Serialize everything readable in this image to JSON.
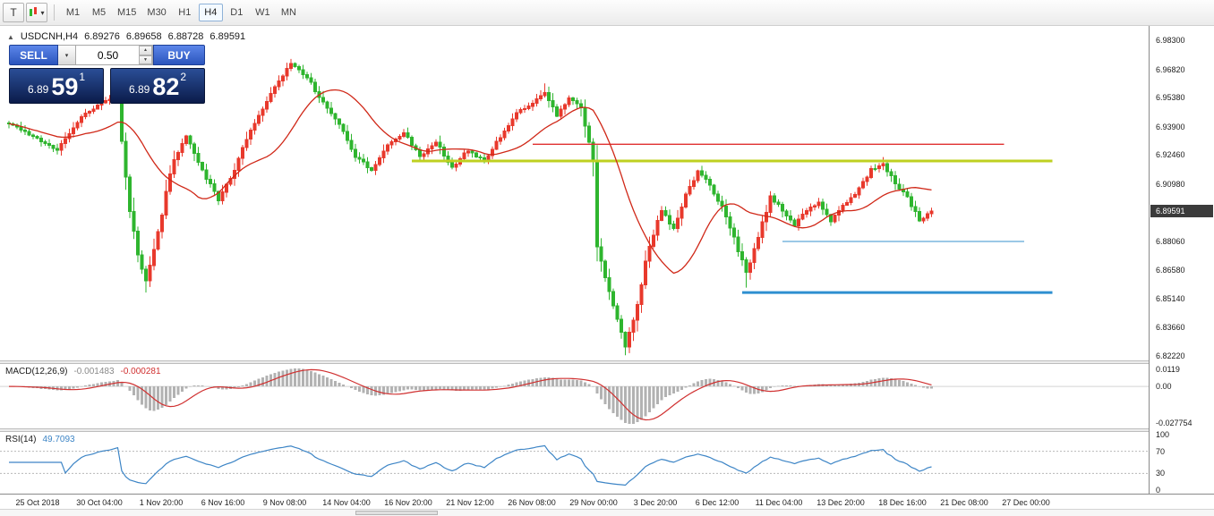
{
  "icons": {
    "dropdown_caret": "▾",
    "collapse_arrow": "▲",
    "spin_up": "▲",
    "spin_down": "▼"
  },
  "toolbar": {
    "icon_t": "T",
    "timeframes": [
      {
        "label": "M1",
        "active": false
      },
      {
        "label": "M5",
        "active": false
      },
      {
        "label": "M15",
        "active": false
      },
      {
        "label": "M30",
        "active": false
      },
      {
        "label": "H1",
        "active": false
      },
      {
        "label": "H4",
        "active": true
      },
      {
        "label": "D1",
        "active": false
      },
      {
        "label": "W1",
        "active": false
      },
      {
        "label": "MN",
        "active": false
      }
    ]
  },
  "chart_header": {
    "symbol": "USDCNH,H4",
    "open": "6.89276",
    "high": "6.89658",
    "low": "6.88728",
    "close": "6.89591"
  },
  "one_click": {
    "sell_label": "SELL",
    "buy_label": "BUY",
    "volume": "0.50",
    "bid_small": "6.89",
    "bid_big": "59",
    "bid_sup": "1",
    "ask_small": "6.89",
    "ask_big": "82",
    "ask_sup": "2"
  },
  "price_scale": [
    "6.98300",
    "6.96820",
    "6.95380",
    "6.93900",
    "6.92460",
    "6.90980",
    "6.89540",
    "6.88060",
    "6.86580",
    "6.85140",
    "6.83660",
    "6.82220"
  ],
  "current_price": "6.89591",
  "macd_panel": {
    "label": "MACD(12,26,9)",
    "value_main": "-0.001483",
    "value_signal": "-0.000281",
    "scale_top": "0.0119",
    "scale_zero": "0.00",
    "scale_bottom": "-0.027754"
  },
  "rsi_panel": {
    "label": "RSI(14)",
    "value": "49.7093",
    "scale": [
      "100",
      "70",
      "30",
      "0"
    ]
  },
  "time_axis": [
    "25 Oct 2018",
    "30 Oct 04:00",
    "1 Nov 20:00",
    "6 Nov 16:00",
    "9 Nov 08:00",
    "14 Nov 04:00",
    "16 Nov 20:00",
    "21 Nov 12:00",
    "26 Nov 08:00",
    "29 Nov 00:00",
    "3 Dec 20:00",
    "6 Dec 12:00",
    "11 Dec 04:00",
    "13 Dec 20:00",
    "18 Dec 16:00",
    "21 Dec 08:00",
    "27 Dec 00:00"
  ],
  "colors": {
    "up": "#e8392c",
    "down": "#2eb52e",
    "ma": "#d02818",
    "macd_hist": "#b2b2b2",
    "macd_signal": "#d03030",
    "rsi": "#3d85c6",
    "hline_red": "#e03030",
    "hline_yellow": "#bfd021",
    "hline_blue_thin": "#5fa8d8",
    "hline_blue_thick": "#2e8fd0"
  },
  "chart_data": {
    "type": "candlestick",
    "symbol": "USDCNH",
    "timeframe": "H4",
    "bars": 230,
    "ylim": [
      6.8199,
      6.9903
    ],
    "close_waypoints": [
      [
        0,
        6.941
      ],
      [
        6,
        6.934
      ],
      [
        12,
        6.927
      ],
      [
        18,
        6.944
      ],
      [
        24,
        6.952
      ],
      [
        27,
        6.956
      ],
      [
        28,
        6.93
      ],
      [
        30,
        6.898
      ],
      [
        32,
        6.874
      ],
      [
        34,
        6.861
      ],
      [
        37,
        6.886
      ],
      [
        41,
        6.923
      ],
      [
        44,
        6.934
      ],
      [
        48,
        6.917
      ],
      [
        52,
        6.901
      ],
      [
        56,
        6.917
      ],
      [
        60,
        6.938
      ],
      [
        64,
        6.951
      ],
      [
        67,
        6.963
      ],
      [
        70,
        6.971
      ],
      [
        74,
        6.964
      ],
      [
        78,
        6.951
      ],
      [
        82,
        6.94
      ],
      [
        86,
        6.924
      ],
      [
        90,
        6.917
      ],
      [
        94,
        6.93
      ],
      [
        98,
        6.936
      ],
      [
        102,
        6.924
      ],
      [
        106,
        6.931
      ],
      [
        110,
        6.918
      ],
      [
        114,
        6.927
      ],
      [
        118,
        6.921
      ],
      [
        122,
        6.934
      ],
      [
        126,
        6.946
      ],
      [
        130,
        6.951
      ],
      [
        133,
        6.957
      ],
      [
        136,
        6.944
      ],
      [
        139,
        6.954
      ],
      [
        142,
        6.948
      ],
      [
        145,
        6.921
      ],
      [
        146,
        6.879
      ],
      [
        149,
        6.855
      ],
      [
        153,
        6.827
      ],
      [
        156,
        6.848
      ],
      [
        159,
        6.879
      ],
      [
        162,
        6.896
      ],
      [
        165,
        6.887
      ],
      [
        168,
        6.904
      ],
      [
        171,
        6.916
      ],
      [
        174,
        6.909
      ],
      [
        177,
        6.898
      ],
      [
        180,
        6.882
      ],
      [
        183,
        6.865
      ],
      [
        186,
        6.882
      ],
      [
        189,
        6.904
      ],
      [
        192,
        6.896
      ],
      [
        195,
        6.889
      ],
      [
        198,
        6.896
      ],
      [
        201,
        6.901
      ],
      [
        204,
        6.891
      ],
      [
        207,
        6.899
      ],
      [
        210,
        6.905
      ],
      [
        214,
        6.917
      ],
      [
        217,
        6.92
      ],
      [
        220,
        6.91
      ],
      [
        223,
        6.903
      ],
      [
        226,
        6.891
      ],
      [
        229,
        6.8959
      ]
    ],
    "spikes": [
      {
        "bar": 27,
        "high": 6.959
      },
      {
        "bar": 34,
        "low": 6.8545
      },
      {
        "bar": 70,
        "high": 6.9735
      },
      {
        "bar": 133,
        "high": 6.961
      },
      {
        "bar": 153,
        "low": 6.8225
      },
      {
        "bar": 183,
        "low": 6.857
      },
      {
        "bar": 217,
        "high": 6.9235
      }
    ],
    "ma_period": 20,
    "hlines": [
      {
        "price": 6.93,
        "bar_start": 130,
        "bar_end": 247,
        "color_key": "hline_red",
        "width": 1.4
      },
      {
        "price": 6.9215,
        "bar_start": 100,
        "bar_end": 259,
        "color_key": "hline_yellow",
        "width": 3
      },
      {
        "price": 6.8805,
        "bar_start": 192,
        "bar_end": 252,
        "color_key": "hline_blue_thin",
        "width": 1.2
      },
      {
        "price": 6.8545,
        "bar_start": 182,
        "bar_end": 259,
        "color_key": "hline_blue_thick",
        "width": 3
      }
    ],
    "macd": {
      "fast": 12,
      "slow": 26,
      "signal": 9
    },
    "macd_ylim": [
      -0.027754,
      0.0119
    ],
    "rsi_period": 14,
    "rsi_levels": [
      70,
      30
    ]
  }
}
